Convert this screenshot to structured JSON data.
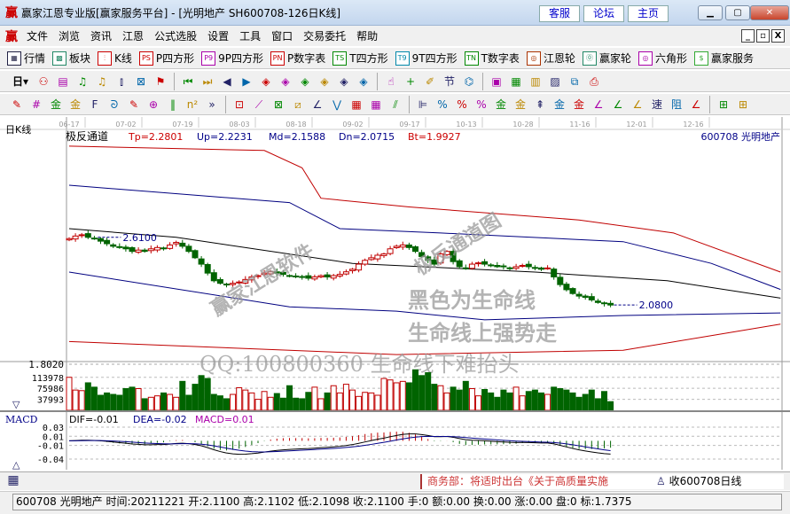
{
  "window": {
    "logo": "赢",
    "title": "赢家江恩专业版[赢家服务平台] - [光明地产  SH600708-126日K线]",
    "links": [
      "客服",
      "论坛",
      "主页"
    ],
    "controls": [
      "minimize",
      "maximize",
      "close"
    ]
  },
  "menu": {
    "logo": "赢",
    "items": [
      "文件",
      "浏览",
      "资讯",
      "江恩",
      "公式选股",
      "设置",
      "工具",
      "窗口",
      "交易委托",
      "帮助"
    ],
    "mdi": [
      "_",
      "▫",
      "X"
    ]
  },
  "toolbar1": [
    {
      "icon": "table-icon",
      "glyph": "▦",
      "label": "行情",
      "color": "#224"
    },
    {
      "icon": "blocks-icon",
      "glyph": "▩",
      "label": "板块",
      "color": "#286"
    },
    {
      "icon": "kline-icon",
      "glyph": "⫶",
      "label": "K线",
      "color": "#c00"
    },
    {
      "icon": "ps-icon",
      "glyph": "PS",
      "label": "P四方形",
      "color": "#c00"
    },
    {
      "icon": "p9-icon",
      "glyph": "P9",
      "label": "9P四方形",
      "color": "#a0a"
    },
    {
      "icon": "pn-icon",
      "glyph": "PN",
      "label": "P数字表",
      "color": "#c00"
    },
    {
      "icon": "ts-icon",
      "glyph": "TS",
      "label": "T四方形",
      "color": "#080"
    },
    {
      "icon": "t9-icon",
      "glyph": "T9",
      "label": "9T四方形",
      "color": "#08a"
    },
    {
      "icon": "tn-icon",
      "glyph": "TN",
      "label": "T数字表",
      "color": "#080"
    },
    {
      "icon": "gann-wheel-icon",
      "glyph": "◎",
      "label": "江恩轮",
      "color": "#a30"
    },
    {
      "icon": "winner-wheel-icon",
      "glyph": "⓪",
      "label": "赢家轮",
      "color": "#286"
    },
    {
      "icon": "hexagon-icon",
      "glyph": "◎",
      "label": "六角形",
      "color": "#a0a"
    },
    {
      "icon": "dollar-icon",
      "glyph": "$",
      "label": "赢家服务",
      "color": "#3a3"
    }
  ],
  "toolbar2": {
    "period": "日",
    "icons": [
      [
        "link-icon",
        "⚇"
      ],
      [
        "doc-icon",
        "▤"
      ],
      [
        "chart3-icon",
        "♫"
      ],
      [
        "chart9-icon",
        "♫"
      ],
      [
        "candle-icon",
        "⫾"
      ],
      [
        "gann-icon",
        "⊠"
      ],
      [
        "flag-icon",
        "⚑"
      ],
      [
        "sep",
        ""
      ],
      [
        "first-icon",
        "⏮"
      ],
      [
        "last-icon",
        "⏭"
      ],
      [
        "left-icon",
        "◀"
      ],
      [
        "right-icon",
        "▶"
      ],
      [
        "diamond-left-icon",
        "◈"
      ],
      [
        "diamond-right-icon",
        "◈"
      ],
      [
        "diamond-h-icon",
        "◈"
      ],
      [
        "diamond-x-icon",
        "◈"
      ],
      [
        "diamond-v-icon",
        "◈"
      ],
      [
        "diamond-vv-icon",
        "◈"
      ],
      [
        "sep",
        ""
      ],
      [
        "hand-icon",
        "☝"
      ],
      [
        "crosshair-icon",
        "+"
      ],
      [
        "draw-icon",
        "✐"
      ],
      [
        "sign-icon",
        "节"
      ],
      [
        "phase-icon",
        "⌬"
      ],
      [
        "sep",
        ""
      ],
      [
        "calendar-icon",
        "▣"
      ],
      [
        "calculator-icon",
        "▦"
      ],
      [
        "book-icon",
        "▥"
      ],
      [
        "save-icon",
        "▨"
      ],
      [
        "network-icon",
        "⧉"
      ],
      [
        "print-icon",
        "⎙"
      ]
    ]
  },
  "toolbar3": {
    "icons": [
      [
        "pen-icon",
        "✎"
      ],
      [
        "grid-icon",
        "#"
      ],
      [
        "gold1-icon",
        "金"
      ],
      [
        "gold2-icon",
        "金"
      ],
      [
        "fib-icon",
        "F"
      ],
      [
        "spiral-icon",
        "ᘐ"
      ],
      [
        "brush-icon",
        "✎"
      ],
      [
        "circle-icon",
        "⊕"
      ],
      [
        "lines-icon",
        "‖"
      ],
      [
        "n2-icon",
        "n²"
      ],
      [
        "more-icon",
        "»"
      ],
      [
        "sep",
        ""
      ],
      [
        "box-icon",
        "⊡"
      ],
      [
        "fan-icon",
        "⟋"
      ],
      [
        "gannbox-icon",
        "⊠"
      ],
      [
        "gannsq-icon",
        "⧄"
      ],
      [
        "angle-icon",
        "∠"
      ],
      [
        "wave-icon",
        "⋁"
      ],
      [
        "hgrid-icon",
        "▦"
      ],
      [
        "vgrid-icon",
        "▦"
      ],
      [
        "parallel-icon",
        "⫽"
      ],
      [
        "sep",
        ""
      ],
      [
        "ruler-icon",
        "⊫"
      ],
      [
        "pct-slash-icon",
        "%"
      ],
      [
        "percent-icon",
        "%"
      ],
      [
        "pct-line-icon",
        "%"
      ],
      [
        "gold-circle-icon",
        "金"
      ],
      [
        "gold-line-icon",
        "金"
      ],
      [
        "arrow-icon",
        "⇞"
      ],
      [
        "cross-gold-icon",
        "金"
      ],
      [
        "gold3-icon",
        "金"
      ],
      [
        "angle2-icon",
        "∠"
      ],
      [
        "fangle-icon",
        "∠"
      ],
      [
        "angle3-icon",
        "∠"
      ],
      [
        "speed-icon",
        "速"
      ],
      [
        "resist-icon",
        "阻"
      ],
      [
        "parallel2-icon",
        "∠"
      ],
      [
        "sep",
        ""
      ],
      [
        "layout1-icon",
        "⊞"
      ],
      [
        "layout2-icon",
        "⊞"
      ]
    ]
  },
  "chart_header": {
    "period_label": "日K线",
    "indicator": "极反通道",
    "tp": "Tp=2.2801",
    "up": "Up=2.2231",
    "md": "Md=2.1588",
    "dn": "Dn=2.0715",
    "bt": "Bt=1.9927",
    "code_name": "600708 光明地产"
  },
  "chart_data": [
    {
      "type": "candlestick",
      "dates": [
        "06-17",
        "07-02",
        "07-19",
        "08-03",
        "08-18",
        "09-02",
        "09-17",
        "10-13",
        "10-28",
        "11-16",
        "12-01",
        "12-16"
      ],
      "close": [
        2.6,
        2.62,
        2.63,
        2.61,
        2.6,
        2.58,
        2.56,
        2.54,
        2.53,
        2.52,
        2.5,
        2.51,
        2.5,
        2.52,
        2.53,
        2.52,
        2.55,
        2.57,
        2.54,
        2.5,
        2.45,
        2.4,
        2.33,
        2.27,
        2.25,
        2.24,
        2.25,
        2.26,
        2.28,
        2.3,
        2.31,
        2.33,
        2.34,
        2.33,
        2.32,
        2.31,
        2.3,
        2.3,
        2.29,
        2.3,
        2.31,
        2.3,
        2.31,
        2.32,
        2.34,
        2.36,
        2.4,
        2.43,
        2.45,
        2.47,
        2.48,
        2.52,
        2.54,
        2.55,
        2.53,
        2.5,
        2.46,
        2.43,
        2.4,
        2.48,
        2.5,
        2.42,
        2.38,
        2.37,
        2.4,
        2.41,
        2.4,
        2.39,
        2.38,
        2.38,
        2.37,
        2.38,
        2.39,
        2.38,
        2.37,
        2.36,
        2.37,
        2.3,
        2.24,
        2.2,
        2.17,
        2.15,
        2.14,
        2.12,
        2.1,
        2.09,
        2.08
      ],
      "ylim": [
        1.658,
        3.358
      ],
      "annotations": [
        {
          "text": "2.6100",
          "at": 2.61
        },
        {
          "text": "2.0800",
          "at": 2.08
        }
      ],
      "channel": {
        "tp": {
          "color": "#c00000",
          "bars": [
            0,
            31,
            37,
            40,
            54,
            81,
            96,
            113
          ],
          "values": [
            3.324,
            3.29,
            3.154,
            2.916,
            2.848,
            2.746,
            2.644,
            2.338
          ]
        },
        "up": {
          "color": "#000080",
          "bars": [
            0,
            35,
            43,
            59,
            88,
            102,
            113
          ],
          "values": [
            3.018,
            2.882,
            2.678,
            2.644,
            2.576,
            2.406,
            2.202
          ]
        },
        "md": {
          "color": "#000000",
          "bars": [
            0,
            17,
            45,
            74,
            95,
            113
          ],
          "values": [
            2.678,
            2.61,
            2.406,
            2.338,
            2.27,
            2.134
          ]
        },
        "dn": {
          "color": "#000080",
          "bars": [
            0,
            35,
            52,
            66,
            88,
            113
          ],
          "values": [
            2.338,
            2.066,
            2.032,
            1.964,
            1.998,
            2.018
          ]
        },
        "bt": {
          "color": "#c00000",
          "bars": [
            0,
            35,
            52,
            88,
            113
          ],
          "values": [
            1.794,
            1.726,
            1.692,
            1.726,
            1.93
          ]
        }
      },
      "price_label": "1.8020",
      "up_color": "#c00000",
      "down_color": "#006400"
    },
    {
      "type": "bar",
      "name": "volume",
      "ticks": [
        "113978",
        "75986",
        "37993"
      ],
      "ymax": 150000,
      "values": [
        113978,
        70000,
        68000,
        95000,
        80000,
        52000,
        60000,
        55000,
        52000,
        75000,
        80000,
        75000,
        40000,
        45000,
        50000,
        60000,
        55000,
        45000,
        100000,
        52000,
        90000,
        120000,
        110000,
        55000,
        50000,
        40000,
        55000,
        78000,
        70000,
        60000,
        38000,
        65000,
        45000,
        58000,
        42000,
        85000,
        42000,
        40000,
        62000,
        80000,
        40000,
        60000,
        85000,
        60000,
        90000,
        70000,
        48000,
        62000,
        60000,
        52000,
        110000,
        105000,
        95000,
        100000,
        95000,
        140000,
        120000,
        130000,
        90000,
        85000,
        60000,
        80000,
        70000,
        100000,
        75000,
        50000,
        72000,
        60000,
        45000,
        70000,
        60000,
        80000,
        50000,
        65000,
        70000,
        60000,
        55000,
        80000,
        75000,
        70000,
        60000,
        45000,
        55000,
        70000,
        40000,
        65000,
        30000
      ]
    },
    {
      "type": "macd",
      "dif": "DIF=-0.01",
      "dea": "DEA=-0.02",
      "macd": "MACD=0.01",
      "ticks": [
        "0.03",
        "0.01",
        "-0.01",
        "-0.04"
      ],
      "ylim": [
        -0.04,
        0.03
      ]
    }
  ],
  "watermarks": [
    "赢家江恩软件",
    "极反通道图",
    "黑色为生命线",
    "生命线上强势走",
    "QQ:100800360 生命线下难抬头"
  ],
  "pane_buttons": {
    "down": "▽",
    "up": "△"
  },
  "macd_label": "MACD",
  "news": {
    "text": "商务部：将适时出台《关于高质量实施",
    "record": "收600708日线"
  },
  "status": "600708 光明地产 时间:20211221 开:2.1100 高:2.1102 低:2.1098 收:2.1100 手:0 额:0.00 换:0.00 涨:0.00 盘:0 标:1.7375"
}
